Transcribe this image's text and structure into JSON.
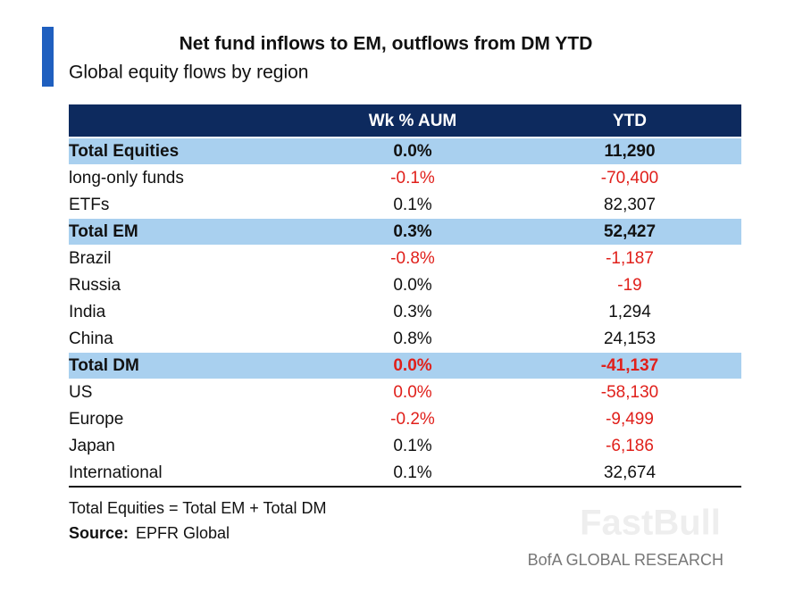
{
  "header": {
    "title": "Net fund inflows to EM, outflows  from DM YTD",
    "subtitle": "Global equity flows by region"
  },
  "table": {
    "columns": [
      "Wk % AUM",
      "YTD"
    ],
    "rows": [
      {
        "label": "Total Equities",
        "values": [
          "0.0%",
          "11,290"
        ],
        "total": true
      },
      {
        "label": "long-only funds",
        "values": [
          "-0.1%",
          "-70,400"
        ],
        "red": true
      },
      {
        "label": "ETFs",
        "values": [
          "0.1%",
          "82,307"
        ]
      },
      {
        "label": "Total EM",
        "values": [
          "0.3%",
          "52,427"
        ],
        "total": true
      },
      {
        "label": "Brazil",
        "values": [
          "-0.8%",
          "-1,187"
        ],
        "red": true
      },
      {
        "label": "Russia",
        "values": [
          "0.0%",
          "-19"
        ],
        "red_cols": [
          1
        ]
      },
      {
        "label": "India",
        "values": [
          "0.3%",
          "1,294"
        ]
      },
      {
        "label": "China",
        "values": [
          "0.8%",
          "24,153"
        ]
      },
      {
        "label": "Total DM",
        "values": [
          "0.0%",
          "-41,137"
        ],
        "total": true,
        "red": true
      },
      {
        "label": "US",
        "values": [
          "0.0%",
          "-58,130"
        ],
        "red": true
      },
      {
        "label": "Europe",
        "values": [
          "-0.2%",
          "-9,499"
        ],
        "red": true
      },
      {
        "label": "Japan",
        "values": [
          "0.1%",
          "-6,186"
        ],
        "red_cols": [
          1
        ]
      },
      {
        "label": "International",
        "values": [
          "0.1%",
          "32,674"
        ]
      }
    ]
  },
  "footer": {
    "note": "Total Equities = Total EM + Total DM",
    "source_label": "Source:",
    "source": "EPFR Global",
    "brand": "BofA GLOBAL RESEARCH",
    "watermark": "FastBull"
  }
}
